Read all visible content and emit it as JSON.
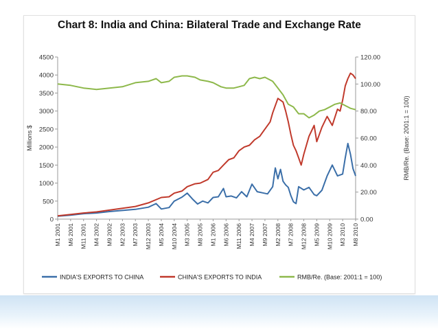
{
  "chart_data": {
    "type": "line",
    "title": "Chart 8: India and China: Bilateral Trade and Exchange Rate",
    "ylabel": "Millions $",
    "y2label": "RMB/Re. (Base: 2001:1 = 100)",
    "ylim": [
      0,
      4500
    ],
    "y2lim": [
      0,
      120
    ],
    "yticks": [
      "0",
      "500",
      "1000",
      "1500",
      "2000",
      "2500",
      "3000",
      "3500",
      "4000",
      "4500"
    ],
    "y2ticks": [
      "0.00",
      "20.00",
      "40.00",
      "60.00",
      "80.00",
      "100.00",
      "120.00"
    ],
    "xlabels": [
      "M1 2001",
      "M6 2001",
      "M11 2001",
      "M4 2002",
      "M9 2002",
      "M2 2003",
      "M7 2003",
      "M12 2003",
      "M5 2004",
      "M10 2004",
      "M3 2005",
      "M8 2005",
      "M1 2006",
      "M6 2006",
      "M11 2006",
      "M4 2007",
      "M9 2007",
      "M2 2008",
      "M7 2008",
      "M12 2008",
      "M5 2009",
      "M10 2009",
      "M3 2010",
      "M8 2010"
    ],
    "x_months": [
      0,
      5,
      10,
      15,
      20,
      25,
      30,
      35,
      40,
      45,
      50,
      55,
      60,
      65,
      70,
      75,
      80,
      85,
      90,
      95,
      100,
      105,
      110,
      115
    ],
    "legend_position": "bottom",
    "grid": false,
    "series": [
      {
        "name": "INDIA'S EXPORTS TO CHINA",
        "axis": "left",
        "color": "#3a6ea8",
        "x": [
          0,
          5,
          10,
          15,
          20,
          25,
          30,
          35,
          38,
          40,
          43,
          45,
          48,
          50,
          52,
          54,
          56,
          58,
          60,
          62,
          64,
          65,
          67,
          69,
          71,
          73,
          75,
          77,
          79,
          81,
          83,
          84,
          85,
          86,
          87,
          88,
          89,
          90,
          91,
          92,
          93,
          95,
          97,
          99,
          100,
          102,
          104,
          106,
          108,
          110,
          111,
          112,
          113,
          114,
          115
        ],
        "values": [
          80,
          110,
          150,
          170,
          210,
          240,
          270,
          330,
          430,
          280,
          320,
          500,
          610,
          720,
          560,
          420,
          500,
          450,
          600,
          620,
          850,
          620,
          640,
          590,
          760,
          620,
          970,
          760,
          730,
          700,
          900,
          1420,
          1120,
          1380,
          1050,
          950,
          880,
          650,
          480,
          430,
          900,
          810,
          880,
          680,
          650,
          800,
          1200,
          1500,
          1200,
          1250,
          1700,
          2100,
          1800,
          1400,
          1200
        ]
      },
      {
        "name": "CHINA'S EXPORTS TO INDIA",
        "axis": "left",
        "color": "#c0392b",
        "x": [
          0,
          5,
          10,
          15,
          20,
          25,
          30,
          35,
          40,
          43,
          45,
          48,
          50,
          53,
          55,
          58,
          60,
          62,
          64,
          66,
          68,
          70,
          72,
          74,
          76,
          78,
          80,
          82,
          83,
          84,
          85,
          86,
          87,
          88,
          89,
          90,
          91,
          92,
          93,
          94,
          95,
          97,
          99,
          100,
          102,
          104,
          106,
          108,
          109,
          110,
          111,
          112,
          113,
          114,
          115
        ],
        "values": [
          90,
          130,
          170,
          200,
          250,
          300,
          350,
          450,
          600,
          620,
          720,
          780,
          900,
          980,
          1000,
          1100,
          1300,
          1350,
          1500,
          1650,
          1700,
          1900,
          2000,
          2050,
          2200,
          2300,
          2500,
          2700,
          2950,
          3150,
          3350,
          3300,
          3250,
          3000,
          2700,
          2350,
          2050,
          1900,
          1700,
          1500,
          1800,
          2300,
          2600,
          2150,
          2550,
          2850,
          2600,
          3050,
          3000,
          3300,
          3700,
          3900,
          4050,
          4000,
          3900
        ]
      },
      {
        "name": "RMB/Re. (Base: 2001:1 = 100)",
        "axis": "right",
        "color": "#8db84a",
        "x": [
          0,
          5,
          10,
          15,
          20,
          25,
          30,
          35,
          38,
          40,
          43,
          45,
          48,
          50,
          53,
          55,
          58,
          60,
          63,
          65,
          68,
          70,
          72,
          74,
          76,
          78,
          80,
          83,
          85,
          87,
          89,
          91,
          93,
          95,
          97,
          99,
          101,
          103,
          105,
          107,
          109,
          111,
          113,
          115
        ],
        "values": [
          100,
          99,
          97,
          96,
          97,
          98,
          101,
          102,
          104,
          101,
          102,
          105,
          106,
          106,
          105,
          103,
          102,
          101,
          98,
          97,
          97,
          98,
          99,
          104,
          105,
          104,
          105,
          102,
          97,
          92,
          85,
          83,
          78,
          78,
          75,
          77,
          80,
          81,
          83,
          85,
          86,
          84,
          82,
          81
        ]
      }
    ]
  }
}
